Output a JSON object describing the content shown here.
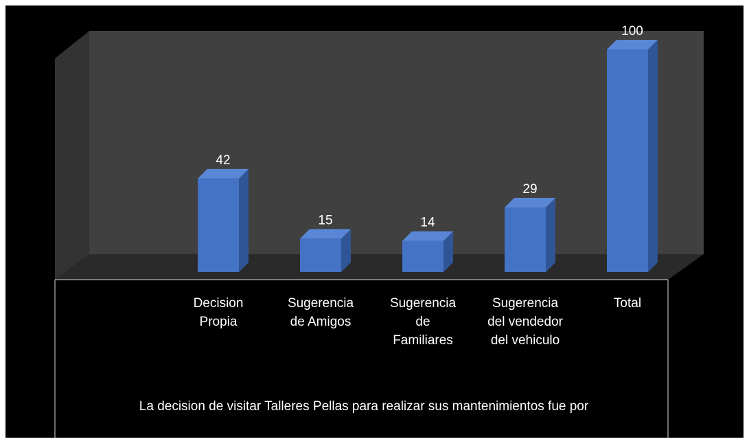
{
  "chart_data": {
    "type": "bar3d",
    "title": "La decision de visitar Talleres  Pellas para realizar sus mantenimientos fue por",
    "categories": [
      "Decision Propia",
      "Sugerencia de Amigos",
      "Sugerencia de Familiares",
      "Sugerencia del vendedor del vehiculo",
      "Total"
    ],
    "values": [
      42,
      15,
      14,
      29,
      100
    ],
    "color": "#4472c4"
  }
}
